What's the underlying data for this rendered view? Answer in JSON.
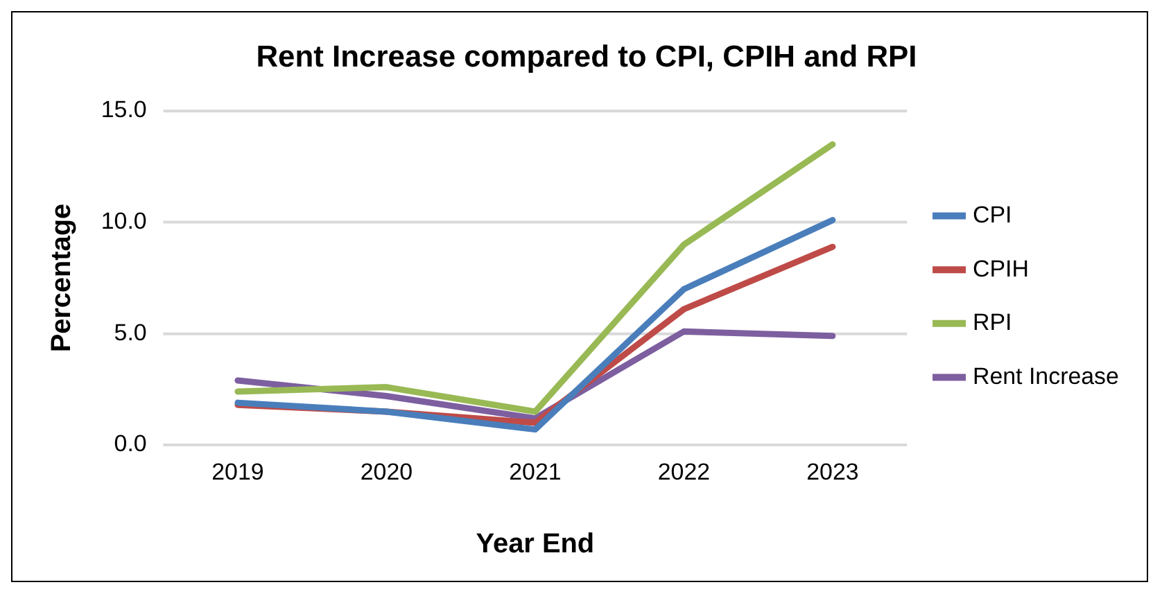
{
  "chart_data": {
    "type": "line",
    "title": "Rent Increase compared to CPI, CPIH and RPI",
    "xlabel": "Year End",
    "ylabel": "Percentage",
    "categories": [
      "2019",
      "2020",
      "2021",
      "2022",
      "2023"
    ],
    "series": [
      {
        "name": "CPI",
        "color": "#4a7ebb",
        "values": [
          1.9,
          1.5,
          0.7,
          7.0,
          10.1
        ]
      },
      {
        "name": "CPIH",
        "color": "#be4b48",
        "values": [
          1.8,
          1.5,
          1.0,
          6.1,
          8.9
        ]
      },
      {
        "name": "RPI",
        "color": "#98b954",
        "values": [
          2.4,
          2.6,
          1.5,
          9.0,
          13.5
        ]
      },
      {
        "name": "Rent Increase",
        "color": "#7d5fa0",
        "values": [
          2.9,
          2.2,
          1.2,
          5.1,
          4.9
        ]
      }
    ],
    "ylim": [
      0,
      15
    ],
    "yticks": [
      {
        "value": 0,
        "label": "0.0"
      },
      {
        "value": 5,
        "label": "5.0"
      },
      {
        "value": 10,
        "label": "10.0"
      },
      {
        "value": 15,
        "label": "15.0"
      }
    ],
    "grid": "y",
    "legend": "right",
    "marker": "none",
    "line_style": "solid"
  }
}
